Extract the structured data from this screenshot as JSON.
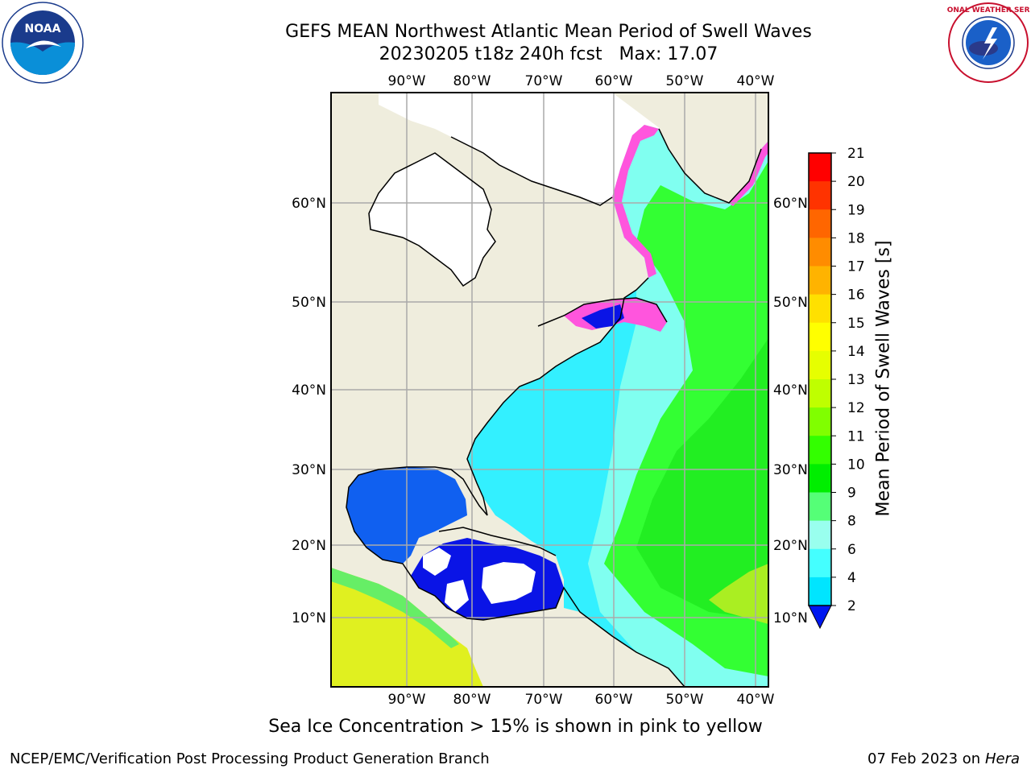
{
  "header": {
    "title_line1": "GEFS MEAN Northwest Atlantic Mean Period of Swell Waves",
    "title_line2": "20230205 t18z 240h fcst   Max: 17.07"
  },
  "logos": {
    "left": "NOAA",
    "right": "NATIONAL WEATHER SERVICE"
  },
  "map": {
    "lon_labels": [
      "90°W",
      "80°W",
      "70°W",
      "60°W",
      "50°W",
      "40°W"
    ],
    "lat_labels": [
      "60°N",
      "50°N",
      "40°N",
      "30°N",
      "20°N",
      "10°N"
    ],
    "colors": {
      "land": "#EFEDDD",
      "ice_free_unknown": "#FFFFFF",
      "ocean_cyan": "#33F0FF",
      "ocean_light": "#80FFF0",
      "ocean_green": "#33FF33",
      "gulf_blue": "#1060F0",
      "caribbean_blue": "#0A14E6",
      "pacific_yellow": "#E0F020",
      "sea_ice_pink": "#FF55DD",
      "grid": "#AAAAAA"
    }
  },
  "colorbar": {
    "title": "Mean Period of Swell Waves [s]",
    "ticks": [
      "21",
      "20",
      "19",
      "18",
      "17",
      "16",
      "15",
      "14",
      "13",
      "12",
      "11",
      "10",
      "9",
      "8",
      "6",
      "4",
      "2"
    ],
    "colors": [
      "#FF0000",
      "#FF3300",
      "#FF6600",
      "#FF8C00",
      "#FFB300",
      "#FFE000",
      "#FFFF00",
      "#E6FF00",
      "#BFFF00",
      "#80FF00",
      "#33FF00",
      "#00EE00",
      "#55FF77",
      "#99FFEE",
      "#44FFFF",
      "#00E5FF",
      "#0099FF",
      "#0055FF"
    ]
  },
  "caption": "Sea Ice Concentration > 15% is shown in pink to yellow",
  "footer": {
    "left": "NCEP/EMC/Verification Post Processing Product Generation Branch",
    "right_date": "07 Feb 2023 on",
    "right_machine": "Hera"
  }
}
